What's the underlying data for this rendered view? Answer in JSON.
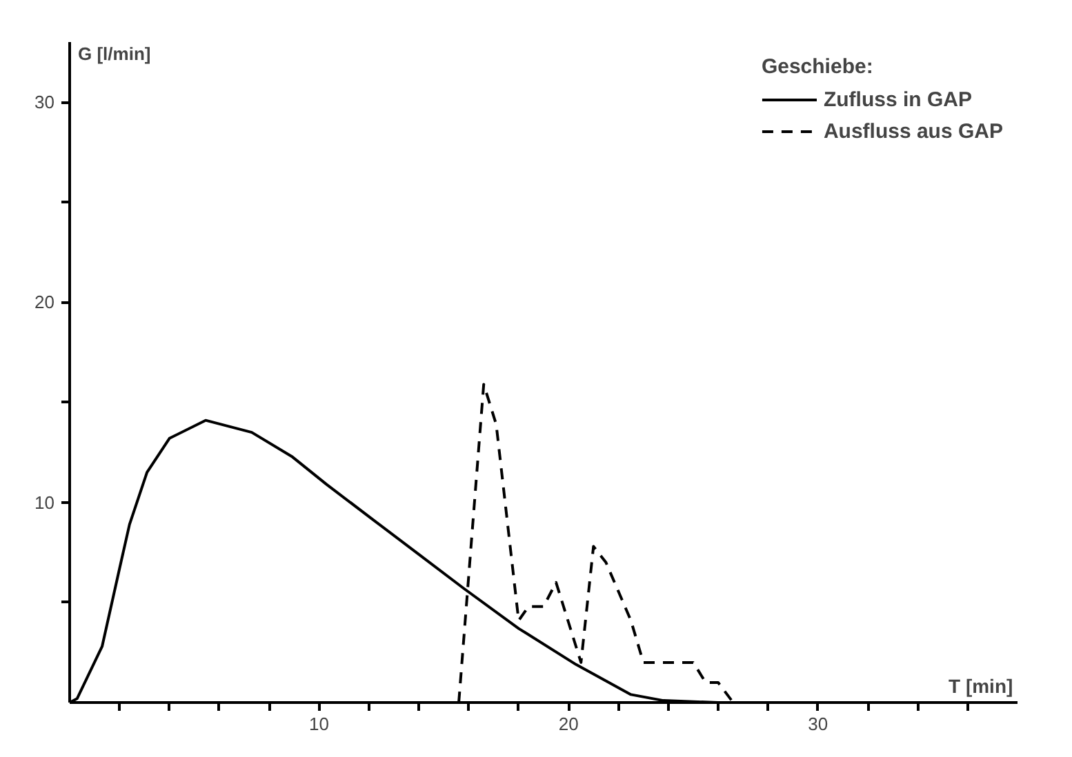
{
  "chart_data": {
    "type": "line",
    "xlabel": "T [min]",
    "ylabel": "G [l/min]",
    "legend_title": "Geschiebe:",
    "xlim": [
      0,
      38
    ],
    "ylim": [
      0,
      33
    ],
    "xticks": [
      {
        "value": 2,
        "label": null
      },
      {
        "value": 4,
        "label": null
      },
      {
        "value": 6,
        "label": null
      },
      {
        "value": 8,
        "label": null
      },
      10,
      {
        "value": 12,
        "label": null
      },
      {
        "value": 14,
        "label": null
      },
      {
        "value": 16,
        "label": null
      },
      {
        "value": 18,
        "label": null
      },
      20,
      {
        "value": 22,
        "label": null
      },
      {
        "value": 24,
        "label": null
      },
      {
        "value": 26,
        "label": null
      },
      {
        "value": 28,
        "label": null
      },
      30,
      {
        "value": 32,
        "label": null
      },
      {
        "value": 34,
        "label": null
      },
      {
        "value": 36,
        "label": null
      }
    ],
    "yticks": [
      {
        "value": 5,
        "label": null
      },
      10,
      {
        "value": 15,
        "label": null
      },
      20,
      {
        "value": 25,
        "label": null
      },
      30
    ],
    "grid": false,
    "legend": "top right",
    "marker": "none",
    "series": [
      {
        "name": "Zufluss in GAP",
        "color": "#000000",
        "line_style": "solid",
        "x": [
          0,
          0.3,
          1.3,
          2.0,
          2.4,
          3.1,
          4.0,
          5.45,
          7.3,
          8.9,
          10.3,
          12.2,
          14.0,
          15.8,
          18.0,
          20.3,
          22.5,
          23.8,
          26.0
        ],
        "values": [
          0,
          0.2,
          2.8,
          6.7,
          8.9,
          11.5,
          13.2,
          14.1,
          13.5,
          12.3,
          10.9,
          9.1,
          7.4,
          5.7,
          3.7,
          1.9,
          0.4,
          0.1,
          0
        ]
      },
      {
        "name": "Ausfluss aus GAP",
        "color": "#000000",
        "line_style": "dashed",
        "x": [
          15.6,
          16.6,
          17.1,
          18.0,
          18.4,
          19.0,
          19.5,
          20.5,
          21.0,
          21.5,
          22.5,
          23.0,
          25.0,
          25.5,
          26.0,
          26.6
        ],
        "values": [
          0,
          15.9,
          13.9,
          4.1,
          4.8,
          4.8,
          6.0,
          2.0,
          7.8,
          7.0,
          4.1,
          2.0,
          2.0,
          1.0,
          1.0,
          0
        ]
      }
    ]
  }
}
